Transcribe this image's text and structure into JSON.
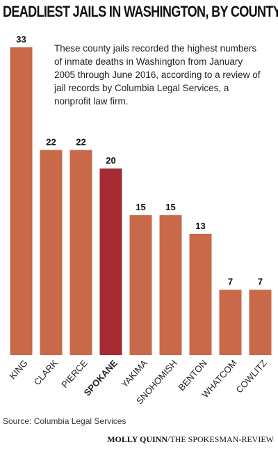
{
  "chart_data": {
    "type": "bar",
    "title": "DEADLIEST JAILS IN WASHINGTON, BY COUNTY",
    "subtitle": "These county jails recorded the highest numbers of inmate deaths in Washington from January 2005 through June 2016, according to a review of jail records by Columbia Legal Services, a nonprofit law firm.",
    "categories": [
      "KING",
      "CLARK",
      "PIERCE",
      "SPOKANE",
      "YAKIMA",
      "SNOHOMISH",
      "BENTON",
      "WHATCOM",
      "COWLITZ"
    ],
    "values": [
      33,
      22,
      22,
      20,
      15,
      15,
      13,
      7,
      7
    ],
    "color": "#c8694a",
    "highlight_index": 3,
    "highlight_color": "#a52a31",
    "ylim": [
      0,
      33
    ],
    "source": "Source: Columbia Legal Services",
    "credit_name": "MOLLY QUINN",
    "credit_org": "/THE SPOKESMAN-REVIEW"
  }
}
